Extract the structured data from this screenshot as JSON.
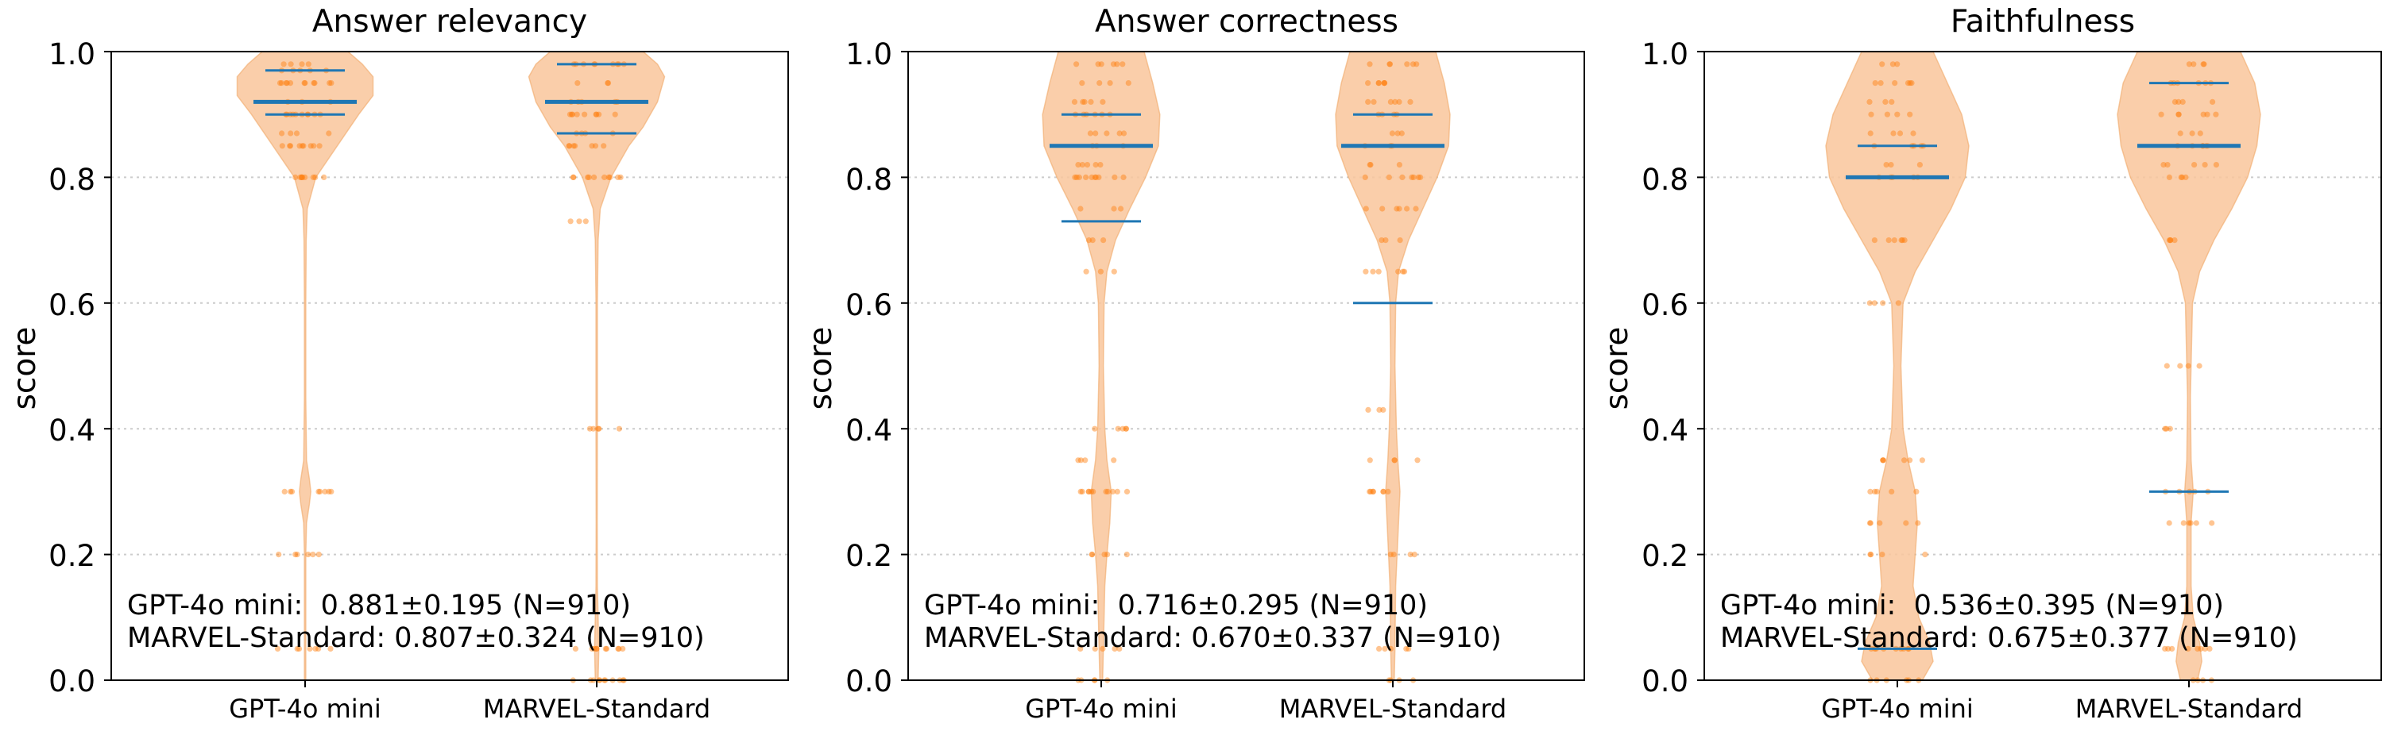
{
  "chart_data": [
    {
      "type": "violin",
      "title": "Answer relevancy",
      "xlabel": "",
      "ylabel": "score",
      "ylim": [
        0,
        1
      ],
      "yticks": [
        "0.0",
        "0.2",
        "0.4",
        "0.6",
        "0.8",
        "1.0"
      ],
      "grid": "horizontal dotted",
      "categories": [
        "GPT-4o mini",
        "MARVEL-Standard"
      ],
      "series": [
        {
          "name": "GPT-4o mini",
          "mean": 0.881,
          "std": 0.195,
          "n": 910,
          "median": 0.92,
          "q1": 0.9,
          "q3": 0.97,
          "points": [
            0.98,
            0.97,
            0.95,
            0.95,
            0.92,
            0.9,
            0.9,
            0.87,
            0.85,
            0.85,
            0.8,
            0.8,
            0.3,
            0.3,
            0.2,
            0.05,
            0.05
          ]
        },
        {
          "name": "MARVEL-Standard",
          "mean": 0.807,
          "std": 0.324,
          "n": 910,
          "median": 0.92,
          "q1": 0.87,
          "q3": 0.98,
          "points": [
            0.98,
            0.98,
            0.95,
            0.92,
            0.9,
            0.9,
            0.87,
            0.85,
            0.85,
            0.8,
            0.8,
            0.73,
            0.4,
            0.05,
            0.05,
            0.0,
            0.0
          ]
        }
      ],
      "annotations": [
        "GPT-4o mini:  0.881±0.195 (N=910)",
        "MARVEL-Standard: 0.807±0.324 (N=910)"
      ]
    },
    {
      "type": "violin",
      "title": "Answer correctness",
      "xlabel": "",
      "ylabel": "score",
      "ylim": [
        0,
        1
      ],
      "yticks": [
        "0.0",
        "0.2",
        "0.4",
        "0.6",
        "0.8",
        "1.0"
      ],
      "grid": "horizontal dotted",
      "categories": [
        "GPT-4o mini",
        "MARVEL-Standard"
      ],
      "series": [
        {
          "name": "GPT-4o mini",
          "mean": 0.716,
          "std": 0.295,
          "n": 910,
          "median": 0.85,
          "q1": 0.73,
          "q3": 0.9,
          "points": [
            0.98,
            0.95,
            0.92,
            0.9,
            0.87,
            0.85,
            0.82,
            0.8,
            0.8,
            0.75,
            0.7,
            0.65,
            0.4,
            0.35,
            0.3,
            0.3,
            0.2,
            0.05,
            0.0
          ]
        },
        {
          "name": "MARVEL-Standard",
          "mean": 0.67,
          "std": 0.337,
          "n": 910,
          "median": 0.85,
          "q1": 0.6,
          "q3": 0.9,
          "points": [
            0.98,
            0.95,
            0.92,
            0.9,
            0.87,
            0.85,
            0.82,
            0.8,
            0.8,
            0.75,
            0.7,
            0.65,
            0.43,
            0.35,
            0.3,
            0.3,
            0.2,
            0.05,
            0.0
          ]
        }
      ],
      "annotations": [
        "GPT-4o mini:  0.716±0.295 (N=910)",
        "MARVEL-Standard: 0.670±0.337 (N=910)"
      ]
    },
    {
      "type": "violin",
      "title": "Faithfulness",
      "xlabel": "",
      "ylabel": "score",
      "ylim": [
        0,
        1
      ],
      "yticks": [
        "0.0",
        "0.2",
        "0.4",
        "0.6",
        "0.8",
        "1.0"
      ],
      "grid": "horizontal dotted",
      "categories": [
        "GPT-4o mini",
        "MARVEL-Standard"
      ],
      "series": [
        {
          "name": "GPT-4o mini",
          "mean": 0.536,
          "std": 0.395,
          "n": 910,
          "median": 0.8,
          "q1": 0.05,
          "q3": 0.85,
          "points": [
            0.98,
            0.95,
            0.92,
            0.9,
            0.87,
            0.85,
            0.82,
            0.8,
            0.7,
            0.6,
            0.35,
            0.3,
            0.25,
            0.2,
            0.05,
            0.05,
            0.0
          ]
        },
        {
          "name": "MARVEL-Standard",
          "mean": 0.675,
          "std": 0.377,
          "n": 910,
          "median": 0.85,
          "q1": 0.3,
          "q3": 0.95,
          "points": [
            0.98,
            0.95,
            0.92,
            0.9,
            0.87,
            0.85,
            0.82,
            0.8,
            0.7,
            0.5,
            0.4,
            0.3,
            0.25,
            0.05,
            0.05,
            0.0
          ]
        }
      ],
      "annotations": [
        "GPT-4o mini:  0.536±0.395 (N=910)",
        "MARVEL-Standard: 0.675±0.377 (N=910)"
      ]
    }
  ],
  "colors": {
    "violin_fill": "#f9c69b",
    "violin_edge": "#f0a868",
    "points": "#ff7f0e",
    "median_line": "#1f77b4",
    "quartile_line": "#1f77b4",
    "grid": "#cccccc"
  },
  "violin_profiles": [
    [
      [
        [
          0.0,
          0.01
        ],
        [
          0.05,
          0.01
        ],
        [
          0.2,
          0.01
        ],
        [
          0.25,
          0.02
        ],
        [
          0.28,
          0.06
        ],
        [
          0.3,
          0.08
        ],
        [
          0.32,
          0.06
        ],
        [
          0.35,
          0.02
        ],
        [
          0.45,
          0.01
        ],
        [
          0.6,
          0.01
        ],
        [
          0.7,
          0.015
        ],
        [
          0.75,
          0.03
        ],
        [
          0.8,
          0.15
        ],
        [
          0.85,
          0.45
        ],
        [
          0.9,
          0.75
        ],
        [
          0.93,
          0.95
        ],
        [
          0.96,
          0.95
        ],
        [
          0.98,
          0.8
        ],
        [
          1.0,
          0.6
        ]
      ],
      [
        [
          0.0,
          0.02
        ],
        [
          0.05,
          0.03
        ],
        [
          0.15,
          0.01
        ],
        [
          0.25,
          0.008
        ],
        [
          0.4,
          0.01
        ],
        [
          0.6,
          0.01
        ],
        [
          0.7,
          0.02
        ],
        [
          0.75,
          0.05
        ],
        [
          0.8,
          0.2
        ],
        [
          0.85,
          0.45
        ],
        [
          0.88,
          0.65
        ],
        [
          0.92,
          0.85
        ],
        [
          0.96,
          0.95
        ],
        [
          0.98,
          0.85
        ],
        [
          1.0,
          0.65
        ]
      ]
    ],
    [
      [
        [
          0.0,
          0.02
        ],
        [
          0.05,
          0.03
        ],
        [
          0.15,
          0.05
        ],
        [
          0.2,
          0.08
        ],
        [
          0.25,
          0.12
        ],
        [
          0.3,
          0.14
        ],
        [
          0.35,
          0.08
        ],
        [
          0.4,
          0.05
        ],
        [
          0.5,
          0.03
        ],
        [
          0.6,
          0.04
        ],
        [
          0.65,
          0.08
        ],
        [
          0.7,
          0.2
        ],
        [
          0.75,
          0.4
        ],
        [
          0.8,
          0.62
        ],
        [
          0.85,
          0.8
        ],
        [
          0.9,
          0.82
        ],
        [
          0.95,
          0.72
        ],
        [
          1.0,
          0.6
        ]
      ],
      [
        [
          0.0,
          0.02
        ],
        [
          0.05,
          0.03
        ],
        [
          0.15,
          0.04
        ],
        [
          0.2,
          0.06
        ],
        [
          0.25,
          0.08
        ],
        [
          0.3,
          0.1
        ],
        [
          0.35,
          0.07
        ],
        [
          0.4,
          0.05
        ],
        [
          0.5,
          0.03
        ],
        [
          0.6,
          0.04
        ],
        [
          0.65,
          0.08
        ],
        [
          0.7,
          0.22
        ],
        [
          0.75,
          0.42
        ],
        [
          0.8,
          0.62
        ],
        [
          0.85,
          0.78
        ],
        [
          0.9,
          0.8
        ],
        [
          0.95,
          0.72
        ],
        [
          1.0,
          0.6
        ]
      ]
    ],
    [
      [
        [
          0.0,
          0.35
        ],
        [
          0.03,
          0.5
        ],
        [
          0.06,
          0.45
        ],
        [
          0.1,
          0.3
        ],
        [
          0.15,
          0.22
        ],
        [
          0.2,
          0.25
        ],
        [
          0.25,
          0.28
        ],
        [
          0.3,
          0.25
        ],
        [
          0.35,
          0.15
        ],
        [
          0.4,
          0.08
        ],
        [
          0.5,
          0.05
        ],
        [
          0.6,
          0.08
        ],
        [
          0.65,
          0.25
        ],
        [
          0.7,
          0.5
        ],
        [
          0.75,
          0.75
        ],
        [
          0.8,
          0.95
        ],
        [
          0.85,
          1.0
        ],
        [
          0.9,
          0.9
        ],
        [
          0.95,
          0.7
        ],
        [
          1.0,
          0.5
        ]
      ],
      [
        [
          0.0,
          0.12
        ],
        [
          0.03,
          0.18
        ],
        [
          0.06,
          0.15
        ],
        [
          0.1,
          0.06
        ],
        [
          0.15,
          0.03
        ],
        [
          0.25,
          0.03
        ],
        [
          0.3,
          0.06
        ],
        [
          0.35,
          0.03
        ],
        [
          0.45,
          0.02
        ],
        [
          0.6,
          0.05
        ],
        [
          0.65,
          0.15
        ],
        [
          0.7,
          0.35
        ],
        [
          0.75,
          0.6
        ],
        [
          0.8,
          0.82
        ],
        [
          0.85,
          0.95
        ],
        [
          0.9,
          1.0
        ],
        [
          0.95,
          0.92
        ],
        [
          1.0,
          0.72
        ]
      ]
    ]
  ]
}
